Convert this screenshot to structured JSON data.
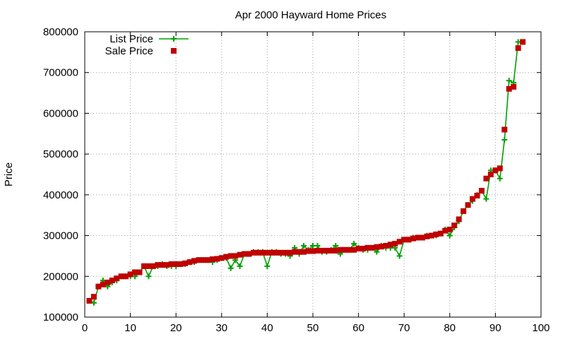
{
  "chart_data": {
    "type": "line",
    "title": "Apr 2000 Hayward Home Prices",
    "xlabel": "",
    "ylabel": "Price",
    "xlim": [
      0,
      100
    ],
    "ylim": [
      100000,
      800000
    ],
    "xticks": [
      0,
      10,
      20,
      30,
      40,
      50,
      60,
      70,
      80,
      90,
      100
    ],
    "yticks": [
      100000,
      200000,
      300000,
      400000,
      500000,
      600000,
      700000,
      800000
    ],
    "grid": true,
    "legend_position": "top-left",
    "series": [
      {
        "name": "List Price",
        "style": "line-with-plus-markers",
        "color": "#00a000",
        "x": [
          1,
          2,
          3,
          4,
          5,
          6,
          7,
          8,
          9,
          10,
          11,
          12,
          13,
          14,
          15,
          16,
          17,
          18,
          19,
          20,
          21,
          22,
          23,
          24,
          25,
          26,
          27,
          28,
          29,
          30,
          31,
          32,
          33,
          34,
          35,
          36,
          37,
          38,
          39,
          40,
          41,
          42,
          43,
          44,
          45,
          46,
          47,
          48,
          49,
          50,
          51,
          52,
          53,
          54,
          55,
          56,
          57,
          58,
          59,
          60,
          61,
          62,
          63,
          64,
          65,
          66,
          67,
          68,
          69,
          70,
          71,
          72,
          73,
          74,
          75,
          76,
          77,
          78,
          79,
          80,
          81,
          82,
          83,
          84,
          85,
          86,
          87,
          88,
          89,
          90,
          91,
          92,
          93,
          94,
          95,
          96
        ],
        "y": [
          140000,
          135000,
          175000,
          190000,
          175000,
          185000,
          190000,
          200000,
          200000,
          200000,
          200000,
          210000,
          225000,
          200000,
          225000,
          225000,
          230000,
          225000,
          225000,
          225000,
          230000,
          230000,
          235000,
          235000,
          240000,
          240000,
          240000,
          235000,
          240000,
          245000,
          245000,
          220000,
          240000,
          225000,
          255000,
          255000,
          260000,
          260000,
          260000,
          225000,
          260000,
          260000,
          255000,
          255000,
          250000,
          270000,
          255000,
          275000,
          265000,
          275000,
          275000,
          260000,
          260000,
          265000,
          275000,
          255000,
          265000,
          265000,
          280000,
          270000,
          265000,
          265000,
          270000,
          260000,
          275000,
          270000,
          270000,
          270000,
          250000,
          290000,
          290000,
          295000,
          295000,
          295000,
          300000,
          300000,
          300000,
          305000,
          315000,
          300000,
          320000,
          335000,
          360000,
          375000,
          385000,
          400000,
          410000,
          390000,
          460000,
          460000,
          440000,
          535000,
          680000,
          675000,
          775000,
          775000
        ]
      },
      {
        "name": "Sale Price",
        "style": "square-markers",
        "color": "#c00000",
        "x": [
          1,
          2,
          3,
          4,
          5,
          6,
          7,
          8,
          9,
          10,
          11,
          12,
          13,
          14,
          15,
          16,
          17,
          18,
          19,
          20,
          21,
          22,
          23,
          24,
          25,
          26,
          27,
          28,
          29,
          30,
          31,
          32,
          33,
          34,
          35,
          36,
          37,
          38,
          39,
          40,
          41,
          42,
          43,
          44,
          45,
          46,
          47,
          48,
          49,
          50,
          51,
          52,
          53,
          54,
          55,
          56,
          57,
          58,
          59,
          60,
          61,
          62,
          63,
          64,
          65,
          66,
          67,
          68,
          69,
          70,
          71,
          72,
          73,
          74,
          75,
          76,
          77,
          78,
          79,
          80,
          81,
          82,
          83,
          84,
          85,
          86,
          87,
          88,
          89,
          90,
          91,
          92,
          93,
          94,
          95,
          96
        ],
        "y": [
          140000,
          150000,
          175000,
          180000,
          185000,
          190000,
          195000,
          200000,
          200000,
          205000,
          210000,
          210000,
          225000,
          225000,
          225000,
          228000,
          228000,
          228000,
          230000,
          230000,
          230000,
          232000,
          235000,
          238000,
          240000,
          240000,
          240000,
          242000,
          243000,
          245000,
          248000,
          250000,
          250000,
          253000,
          255000,
          255000,
          258000,
          258000,
          258000,
          258000,
          258000,
          258000,
          258000,
          258000,
          258000,
          260000,
          260000,
          260000,
          262000,
          262000,
          263000,
          263000,
          263000,
          263000,
          263000,
          265000,
          265000,
          265000,
          265000,
          268000,
          268000,
          270000,
          270000,
          272000,
          273000,
          275000,
          278000,
          280000,
          285000,
          290000,
          290000,
          293000,
          295000,
          295000,
          298000,
          300000,
          303000,
          305000,
          312000,
          315000,
          325000,
          340000,
          360000,
          375000,
          390000,
          398000,
          410000,
          440000,
          450000,
          460000,
          465000,
          560000,
          660000,
          665000,
          760000,
          775000
        ]
      }
    ]
  }
}
